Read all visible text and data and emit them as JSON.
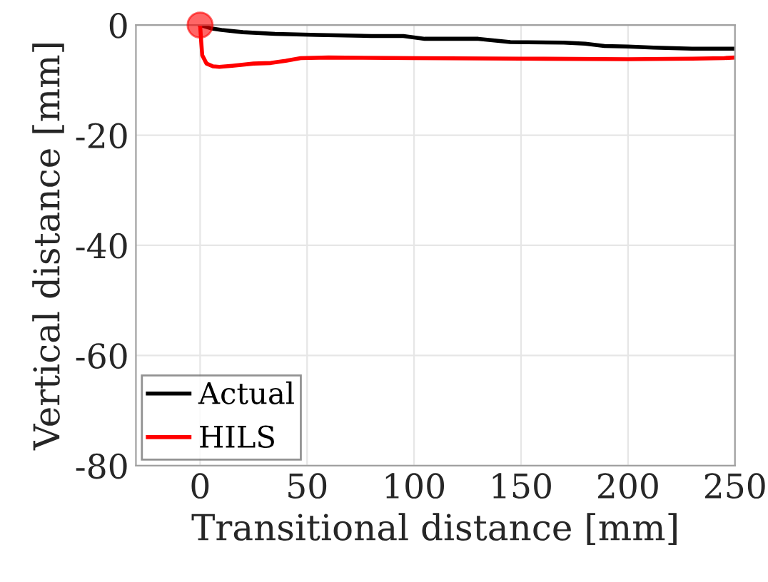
{
  "chart_data": {
    "type": "line",
    "xlabel": "Transitional distance [mm]",
    "ylabel": "Vertical distance [mm]",
    "xlim": [
      -30,
      250
    ],
    "ylim": [
      -80,
      0
    ],
    "xticks": [
      0,
      50,
      100,
      150,
      200,
      250
    ],
    "yticks": [
      -80,
      -60,
      -40,
      -20,
      0
    ],
    "grid": true,
    "legend": "bottom left",
    "series": [
      {
        "name": "Actual",
        "color": "#000000",
        "x": [
          0,
          5,
          10,
          20,
          35,
          55,
          80,
          95,
          105,
          130,
          145,
          170,
          180,
          189,
          200,
          212,
          230,
          250
        ],
        "values": [
          0,
          -0.6,
          -0.9,
          -1.3,
          -1.6,
          -1.8,
          -2.0,
          -2.0,
          -2.5,
          -2.5,
          -3.1,
          -3.2,
          -3.4,
          -3.8,
          -3.9,
          -4.1,
          -4.3,
          -4.3
        ]
      },
      {
        "name": "HILS",
        "color": "#ff0000",
        "x": [
          0,
          0.5,
          1,
          3,
          6,
          9,
          15,
          25,
          33,
          40,
          47,
          60,
          100,
          150,
          200,
          230,
          245,
          250
        ],
        "values": [
          0,
          -3,
          -5.5,
          -7.0,
          -7.5,
          -7.6,
          -7.4,
          -7.0,
          -6.9,
          -6.5,
          -6.0,
          -5.9,
          -6.0,
          -6.1,
          -6.2,
          -6.1,
          -6.0,
          -5.9
        ]
      },
      {
        "type": "scatter",
        "color": "#ff0000",
        "x": [
          0
        ],
        "values": [
          0
        ],
        "marker": "circle"
      }
    ]
  }
}
